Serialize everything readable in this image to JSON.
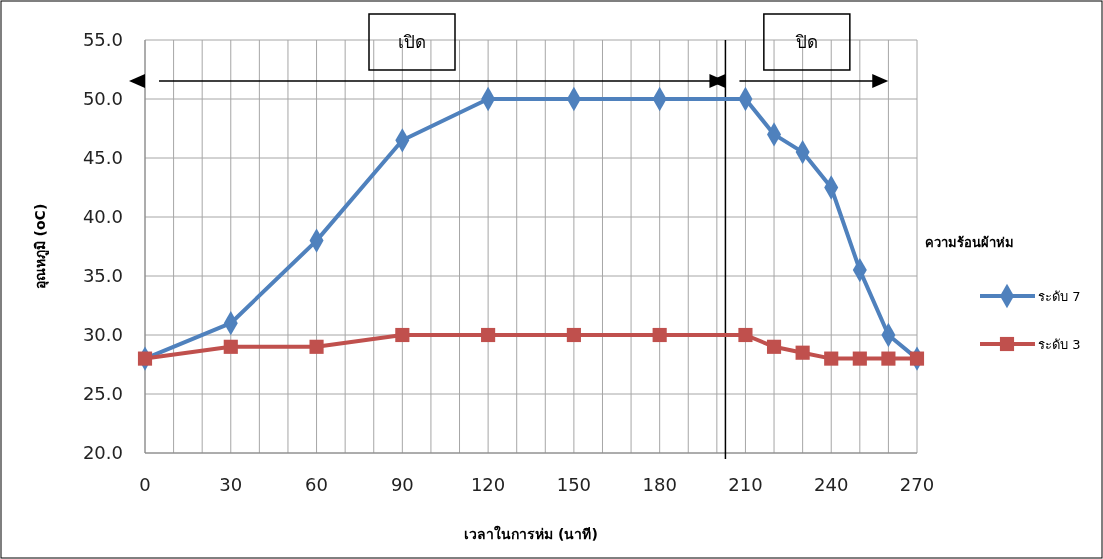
{
  "chart_data": {
    "type": "line",
    "xlabel": "เวลาในการห่ม (นาที)",
    "ylabel": "อุณหภูมิ (oC)",
    "legend_title": "ความร้อนผ้าห่ม",
    "legend": "right",
    "xlim": [
      0,
      270
    ],
    "ylim": [
      20,
      55
    ],
    "xticks": [
      0,
      {
        "value": 10,
        "label": null
      },
      {
        "value": 20,
        "label": null
      },
      30,
      {
        "value": 40,
        "label": null
      },
      {
        "value": 50,
        "label": null
      },
      60,
      {
        "value": 70,
        "label": null
      },
      {
        "value": 80,
        "label": null
      },
      90,
      {
        "value": 100,
        "label": null
      },
      {
        "value": 110,
        "label": null
      },
      120,
      {
        "value": 130,
        "label": null
      },
      {
        "value": 140,
        "label": null
      },
      150,
      {
        "value": 160,
        "label": null
      },
      {
        "value": 170,
        "label": null
      },
      180,
      {
        "value": 190,
        "label": null
      },
      {
        "value": 200,
        "label": null
      },
      210,
      {
        "value": 220,
        "label": null
      },
      {
        "value": 230,
        "label": null
      },
      240,
      {
        "value": 250,
        "label": null
      },
      {
        "value": 260,
        "label": null
      },
      270
    ],
    "yticks": [
      {
        "value": 20,
        "label": "20.0"
      },
      {
        "value": 25,
        "label": "25.0"
      },
      {
        "value": 30,
        "label": "30.0"
      },
      {
        "value": 35,
        "label": "35.0"
      },
      {
        "value": 40,
        "label": "40.0"
      },
      {
        "value": 45,
        "label": "45.0"
      },
      {
        "value": 50,
        "label": "50.0"
      },
      {
        "value": 55,
        "label": "55.0"
      }
    ],
    "grid": true,
    "x": [
      0,
      30,
      60,
      90,
      120,
      150,
      180,
      210,
      220,
      230,
      240,
      250,
      260,
      270
    ],
    "series": [
      {
        "name": "ระดับ 7",
        "color": "#4f81bd",
        "marker": "diamond",
        "values": [
          28,
          31,
          38,
          46.5,
          50,
          50,
          50,
          50,
          47,
          45.5,
          42.5,
          35.5,
          30,
          28
        ]
      },
      {
        "name": "ระดับ 3",
        "color": "#c0504d",
        "marker": "square",
        "values": [
          28,
          29,
          29,
          30,
          30,
          30,
          30,
          30,
          29,
          28.5,
          28,
          28,
          28,
          28
        ]
      }
    ],
    "ref_lines": [
      {
        "axis": "x",
        "value": 203,
        "color": "#000000"
      }
    ],
    "annotations": [
      "เปิด",
      "ปิด"
    ]
  }
}
